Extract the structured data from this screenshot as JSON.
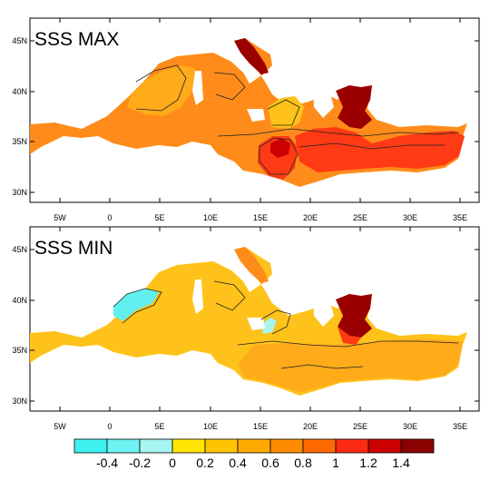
{
  "panels": [
    {
      "title": "SSS MAX",
      "lat_labels": [
        "45N",
        "40N",
        "35N",
        "30N"
      ],
      "lon_labels": [
        "5W",
        "0",
        "5E",
        "10E",
        "15E",
        "20E",
        "25E",
        "30E",
        "35E"
      ]
    },
    {
      "title": "SSS MIN",
      "lat_labels": [
        "45N",
        "40N",
        "35N",
        "30N"
      ],
      "lon_labels": [
        "5W",
        "0",
        "5E",
        "10E",
        "15E",
        "20E",
        "25E",
        "30E",
        "35E"
      ]
    }
  ],
  "colorbar": {
    "labels": [
      "-0.4",
      "-0.2",
      "0",
      "0.2",
      "0.4",
      "0.6",
      "0.8",
      "1",
      "1.2",
      "1.4"
    ],
    "colors": [
      "#3ff2f2",
      "#6ff2f2",
      "#a6f5f0",
      "#ffe600",
      "#ffc400",
      "#ffaa00",
      "#ff8c00",
      "#ff6a00",
      "#ff2a14",
      "#cc0000",
      "#8b0000"
    ]
  },
  "legend_colors": {
    "base_orange": "#ff8c1a",
    "light_orange": "#ffab1a",
    "yellow_orange": "#ffc21a",
    "red": "#ff3a14",
    "dark_red": "#9b0000",
    "cyan": "#60f0f0"
  }
}
